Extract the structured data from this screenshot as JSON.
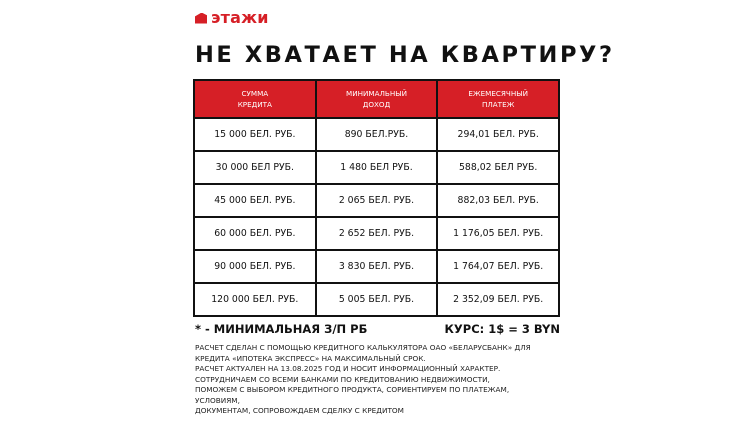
{
  "brand": {
    "name": "этажи",
    "color": "#d61f26",
    "icon": "house-roof-icon"
  },
  "title": "НЕ ХВАТАЕТ НА КВАРТИРУ?",
  "table": {
    "headers": [
      [
        "СУММА",
        "КРЕДИТА"
      ],
      [
        "МИНИМАЛЬНЫЙ",
        "ДОХОД"
      ],
      [
        "ЕЖЕМЕСЯЧНЫЙ",
        "ПЛАТЕЖ"
      ]
    ],
    "rows": [
      [
        "15 000 БЕЛ. РУБ.",
        "890 БЕЛ.РУБ.",
        "294,01 БЕЛ. РУБ."
      ],
      [
        "30 000 БЕЛ РУБ.",
        "1 480 БЕЛ РУБ.",
        "588,02 БЕЛ РУБ."
      ],
      [
        "45 000 БЕЛ. РУБ.",
        "2 065 БЕЛ. РУБ.",
        "882,03 БЕЛ. РУБ."
      ],
      [
        "60 000 БЕЛ. РУБ.",
        "2 652 БЕЛ. РУБ.",
        "1 176,05 БЕЛ. РУБ."
      ],
      [
        "90 000 БЕЛ. РУБ.",
        "3 830 БЕЛ. РУБ.",
        "1 764,07 БЕЛ. РУБ."
      ],
      [
        "120 000 БЕЛ. РУБ.",
        "5 005 БЕЛ. РУБ.",
        "2 352,09 БЕЛ. РУБ."
      ]
    ]
  },
  "footnote": "* - МИНИМАЛЬНАЯ З/П РБ",
  "rate": "КУРС: 1$ = 3 BYN",
  "notes": [
    "РАСЧЕТ СДЕЛАН С ПОМОЩЬЮ КРЕДИТНОГО КАЛЬКУЛЯТОРА ОАО «БЕЛАРУСБАНК» ДЛЯ",
    "КРЕДИТА «ИПОТЕКА ЭКСПРЕСС» НА МАКСИМАЛЬНЫЙ СРОК.",
    "РАСЧЕТ АКТУАЛЕН НА 13.08.2025 ГОД И НОСИТ ИНФОРМАЦИОННЫЙ ХАРАКТЕР.",
    "СОТРУДНИЧАЕМ СО ВСЕМИ БАНКАМИ ПО КРЕДИТОВАНИЮ НЕДВИЖИМОСТИ,",
    "ПОМОЖЕМ С ВЫБОРОМ КРЕДИТНОГО ПРОДУКТА, СОРИЕНТИРУЕМ ПО ПЛАТЕЖАМ,",
    "УСЛОВИЯМ,",
    "ДОКУМЕНТАМ, СОПРОВОЖДАЕМ СДЕЛКУ С КРЕДИТОМ"
  ]
}
